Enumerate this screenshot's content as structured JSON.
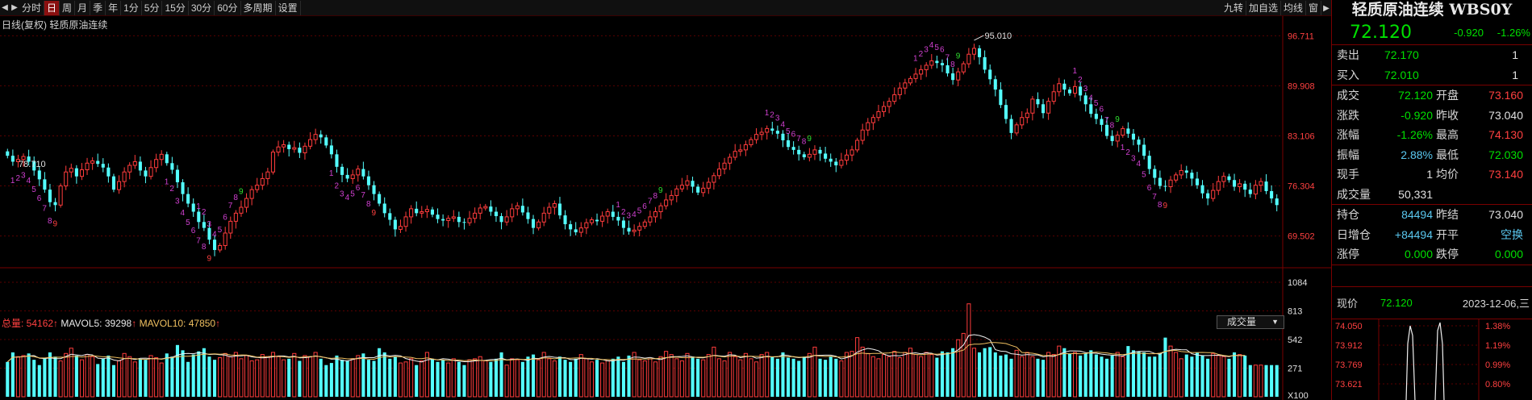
{
  "toolbar": {
    "items": [
      "分时",
      "日",
      "周",
      "月",
      "季",
      "年",
      "1分",
      "5分",
      "15分",
      "30分",
      "60分",
      "多周期",
      "设置"
    ],
    "active_index": 1,
    "right_items": [
      "九转",
      "加自选",
      "均线",
      "窗"
    ]
  },
  "chart": {
    "title": "日线(复权)  轻质原油连续",
    "y_ticks": [
      "96.711",
      "89.908",
      "83.106",
      "76.304",
      "69.502"
    ],
    "y_values": [
      96.711,
      89.908,
      83.106,
      76.304,
      69.502
    ],
    "high_label": "95.010",
    "left_label": "78.710",
    "vol_header": {
      "total_label": "总量: 54162",
      "ma5_label": "MAVOL5: 39298",
      "ma10_label": "MAVOL10: 47850"
    },
    "vol_select": "成交量",
    "vol_ticks": [
      "1084",
      "813",
      "542",
      "271",
      "X100"
    ]
  },
  "chart_data": {
    "type": "candlestick",
    "ylim": [
      66.5,
      98.5
    ],
    "closes": [
      80.4,
      79.6,
      79.9,
      80.3,
      79.6,
      78.4,
      77.2,
      75.8,
      74.1,
      73.7,
      76.3,
      78.2,
      78.7,
      77.6,
      78.5,
      79.4,
      79.7,
      79.3,
      78.8,
      77.6,
      75.8,
      76.9,
      78.2,
      79.1,
      79.6,
      78.4,
      77.6,
      78.8,
      79.9,
      80.6,
      79.4,
      78.5,
      76.8,
      75.2,
      73.9,
      72.8,
      71.4,
      70.6,
      69.0,
      67.6,
      68.2,
      69.9,
      71.5,
      72.6,
      73.4,
      74.6,
      75.8,
      76.4,
      77.3,
      78.2,
      80.9,
      81.6,
      81.9,
      81.3,
      81.5,
      80.8,
      81.7,
      82.6,
      83.3,
      82.9,
      81.8,
      80.6,
      78.9,
      77.8,
      77.3,
      77.8,
      78.6,
      77.6,
      76.4,
      75.2,
      73.9,
      72.6,
      71.7,
      70.4,
      70.8,
      72.1,
      73.2,
      72.6,
      72.8,
      73.1,
      72.4,
      71.8,
      71.6,
      71.9,
      72.1,
      71.4,
      71.3,
      71.9,
      72.6,
      73.3,
      73.5,
      72.8,
      72.2,
      71.4,
      72.1,
      73.2,
      73.6,
      72.7,
      71.8,
      70.6,
      71.4,
      72.6,
      73.4,
      73.9,
      72.3,
      71.1,
      70.4,
      70.0,
      70.6,
      71.3,
      71.7,
      71.5,
      72.2,
      72.8,
      72.1,
      71.6,
      70.6,
      70.1,
      70.3,
      70.8,
      71.4,
      72.1,
      72.8,
      73.6,
      74.4,
      75.0,
      75.9,
      76.4,
      77.0,
      76.2,
      75.4,
      76.0,
      76.8,
      77.7,
      78.6,
      79.4,
      80.2,
      81.0,
      81.2,
      81.9,
      82.6,
      83.3,
      83.6,
      84.1,
      83.8,
      83.4,
      82.5,
      81.6,
      81.2,
      80.6,
      80.2,
      80.6,
      81.2,
      80.7,
      80.0,
      79.6,
      79.1,
      79.8,
      80.5,
      81.2,
      82.5,
      83.9,
      84.9,
      85.6,
      86.4,
      87.1,
      87.8,
      88.7,
      89.6,
      90.3,
      90.9,
      91.5,
      92.1,
      92.7,
      93.3,
      93.0,
      92.7,
      91.6,
      90.7,
      91.8,
      92.9,
      94.2,
      95.0,
      93.8,
      92.1,
      90.8,
      89.4,
      87.3,
      85.4,
      83.5,
      84.6,
      85.6,
      86.2,
      88.1,
      87.4,
      86.2,
      87.8,
      89.1,
      90.2,
      89.4,
      88.9,
      89.8,
      88.6,
      87.4,
      86.1,
      85.4,
      84.6,
      83.1,
      82.4,
      83.2,
      84.1,
      83.4,
      82.6,
      81.9,
      80.4,
      78.6,
      77.4,
      76.3,
      76.2,
      77.1,
      77.8,
      78.4,
      78.1,
      77.3,
      76.4,
      75.3,
      74.6,
      75.7,
      76.9,
      77.6,
      77.1,
      76.2,
      76.6,
      75.8,
      75.2,
      76.4,
      76.9,
      75.6,
      74.6,
      73.7
    ],
    "volumes": [
      330,
      420,
      380,
      390,
      410,
      350,
      300,
      360,
      420,
      380,
      340,
      410,
      460,
      390,
      350,
      400,
      380,
      310,
      360,
      390,
      300,
      340,
      410,
      380,
      330,
      360,
      350,
      390,
      370,
      320,
      410,
      380,
      490,
      440,
      330,
      400,
      430,
      460,
      380,
      350,
      370,
      410,
      380,
      420,
      360,
      390,
      340,
      350,
      400,
      380,
      420,
      380,
      350,
      360,
      410,
      340,
      390,
      380,
      420,
      360,
      300,
      320,
      390,
      350,
      340,
      360,
      390,
      410,
      350,
      340,
      460,
      420,
      360,
      380,
      320,
      330,
      360,
      300,
      340,
      420,
      360,
      330,
      350,
      320,
      360,
      330,
      300,
      350,
      360,
      380,
      340,
      330,
      360,
      420,
      300,
      360,
      350,
      330,
      380,
      400,
      350,
      420,
      360,
      340,
      380,
      350,
      330,
      360,
      400,
      360,
      330,
      350,
      320,
      340,
      360,
      380,
      330,
      390,
      420,
      350,
      340,
      360,
      330,
      380,
      430,
      400,
      360,
      340,
      410,
      380,
      360,
      350,
      400,
      470,
      360,
      340,
      420,
      380,
      350,
      410,
      360,
      330,
      400,
      420,
      380,
      360,
      420,
      370,
      360,
      340,
      380,
      410,
      470,
      360,
      350,
      380,
      360,
      340,
      420,
      430,
      560,
      470,
      410,
      380,
      360,
      400,
      380,
      430,
      370,
      420,
      460,
      400,
      380,
      420,
      400,
      370,
      430,
      420,
      460,
      540,
      600,
      880,
      460,
      420,
      460,
      470,
      420,
      390,
      400,
      360,
      440,
      380,
      420,
      380,
      360,
      350,
      420,
      400,
      480,
      460,
      410,
      420,
      390,
      410,
      440,
      400,
      380,
      360,
      390,
      420,
      380,
      480,
      440,
      430,
      420,
      380,
      380,
      410,
      560,
      480,
      420,
      360,
      400,
      380,
      420,
      390,
      360,
      410,
      390,
      380,
      360,
      420,
      400,
      390
    ]
  },
  "panel": {
    "title": "轻质原油连续 WBS0Y",
    "price": "72.120",
    "change": "-0.920",
    "change_pct": "-1.26%",
    "sell_label": "卖出",
    "sell_price": "72.170",
    "sell_qty": "1",
    "buy_label": "买入",
    "buy_price": "72.010",
    "buy_qty": "1",
    "rows1": [
      {
        "l1": "成交",
        "v1": "72.120",
        "c1": "grn",
        "l2": "开盘",
        "v2": "73.160",
        "c2": "red"
      },
      {
        "l1": "涨跌",
        "v1": "-0.920",
        "c1": "grn",
        "l2": "昨收",
        "v2": "73.040",
        "c2": "wht"
      },
      {
        "l1": "涨幅",
        "v1": "-1.26%",
        "c1": "grn",
        "l2": "最高",
        "v2": "74.130",
        "c2": "red"
      },
      {
        "l1": "振幅",
        "v1": "2.88%",
        "c1": "cyn",
        "l2": "最低",
        "v2": "72.030",
        "c2": "grn"
      },
      {
        "l1": "现手",
        "v1": "1",
        "c1": "wht",
        "l2": "均价",
        "v2": "73.140",
        "c2": "red"
      },
      {
        "l1": "成交量",
        "v1": "50,331",
        "c1": "wht",
        "l2": "",
        "v2": "",
        "c2": "wht"
      }
    ],
    "rows2": [
      {
        "l1": "持仓",
        "v1": "84494",
        "c1": "cyn",
        "l2": "昨结",
        "v2": "73.040",
        "c2": "wht"
      },
      {
        "l1": "日增仓",
        "v1": "+84494",
        "c1": "cyn",
        "l2": "开平",
        "v2": "空换",
        "c2": "cyn"
      },
      {
        "l1": "涨停",
        "v1": "0.000",
        "c1": "grn",
        "l2": "跌停",
        "v2": "0.000",
        "c2": "grn"
      }
    ],
    "now_label": "现价",
    "now_price": "72.120",
    "now_date": "2023-12-06,三",
    "mini_left": [
      "74.050",
      "73.912",
      "73.769",
      "73.621"
    ],
    "mini_right": [
      "1.38%",
      "1.19%",
      "0.99%",
      "0.80%"
    ]
  },
  "colors": {
    "up": "#ff3c3c",
    "down": "#54ffff",
    "grid": "#5a0000",
    "ma": "#f0c060"
  }
}
